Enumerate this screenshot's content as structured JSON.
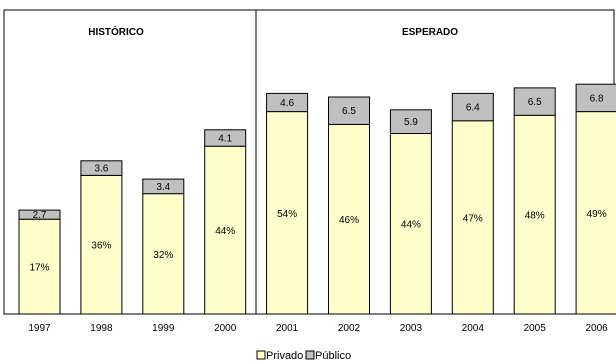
{
  "chart_data": {
    "type": "bar",
    "stacked": true,
    "sections": [
      {
        "label": "HISTÓRICO",
        "start_index": 0,
        "end_index": 3
      },
      {
        "label": "ESPERADO",
        "start_index": 4,
        "end_index": 9
      }
    ],
    "categories": [
      "1997",
      "1998",
      "1999",
      "2000",
      "2001",
      "2002",
      "2003",
      "2004",
      "2005",
      "2006"
    ],
    "series": [
      {
        "name": "Privado",
        "color": "#ffffcc",
        "labels": [
          "17%",
          "36%",
          "32%",
          "44%",
          "54%",
          "46%",
          "44%",
          "47%",
          "48%",
          "49%"
        ],
        "values": [
          2.6,
          3.8,
          3.3,
          4.6,
          5.55,
          5.2,
          4.95,
          5.3,
          5.45,
          5.55
        ]
      },
      {
        "name": "Público",
        "color": "#c0c0c0",
        "labels": [
          "2.7",
          "3.6",
          "3.4",
          "4.1",
          "4.6",
          "6.5",
          "5.9",
          "6.4",
          "6.5",
          "6.8"
        ],
        "values": [
          0.25,
          0.4,
          0.4,
          0.45,
          0.5,
          0.75,
          0.65,
          0.75,
          0.75,
          0.75
        ]
      }
    ],
    "legend": {
      "position": "bottom-center",
      "items": [
        "Privado",
        "Público"
      ]
    },
    "ylim": [
      0,
      6.8
    ],
    "grid": false
  }
}
